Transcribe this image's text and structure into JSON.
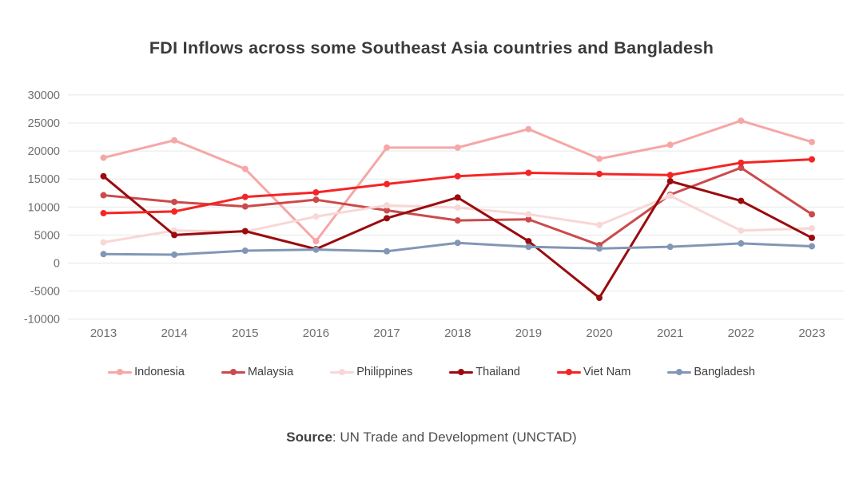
{
  "page": {
    "title": "FDI Inflows across some Southeast Asia countries and Bangladesh"
  },
  "source": {
    "label": "Source",
    "text": ": UN Trade and Development (UNCTAD)"
  },
  "colors": {
    "title_text": "#3a3a3a",
    "axis_text": "#6e6e6e",
    "gridline": "#e7e7e7",
    "legend_text": "#3e3e3e",
    "source_text": "#4e4e4e",
    "background": "#ffffff"
  },
  "chart_data": {
    "type": "line",
    "title": "FDI Inflows across some Southeast Asia countries and Bangladesh",
    "xlabel": "",
    "ylabel": "",
    "x": [
      2013,
      2014,
      2015,
      2016,
      2017,
      2018,
      2019,
      2020,
      2021,
      2022,
      2023
    ],
    "ylim": [
      -10000,
      30000
    ],
    "yticks": [
      30000,
      25000,
      20000,
      15000,
      10000,
      5000,
      0,
      -5000,
      -10000
    ],
    "grid": true,
    "legend_position": "bottom",
    "series": [
      {
        "name": "Indonesia",
        "color": "#f5a7a6",
        "values": [
          18800,
          21900,
          16800,
          3900,
          20600,
          20600,
          23900,
          18600,
          21100,
          25400,
          21600
        ]
      },
      {
        "name": "Malaysia",
        "color": "#cb4a4b",
        "values": [
          12100,
          10900,
          10100,
          11300,
          9400,
          7600,
          7800,
          3200,
          12200,
          17000,
          8700
        ]
      },
      {
        "name": "Philippines",
        "color": "#f8d7d6",
        "values": [
          3700,
          5800,
          5600,
          8300,
          10300,
          9900,
          8700,
          6800,
          12000,
          5800,
          6200
        ]
      },
      {
        "name": "Thailand",
        "color": "#9a0b0e",
        "values": [
          15500,
          5000,
          5700,
          2500,
          8000,
          11700,
          3900,
          -6200,
          14600,
          11100,
          4500
        ]
      },
      {
        "name": "Viet Nam",
        "color": "#f42525",
        "values": [
          8900,
          9200,
          11800,
          12600,
          14100,
          15500,
          16100,
          15900,
          15700,
          17900,
          18500
        ]
      },
      {
        "name": "Bangladesh",
        "color": "#8297b5",
        "values": [
          1600,
          1500,
          2200,
          2400,
          2100,
          3600,
          2900,
          2600,
          2900,
          3500,
          3000
        ]
      }
    ]
  }
}
